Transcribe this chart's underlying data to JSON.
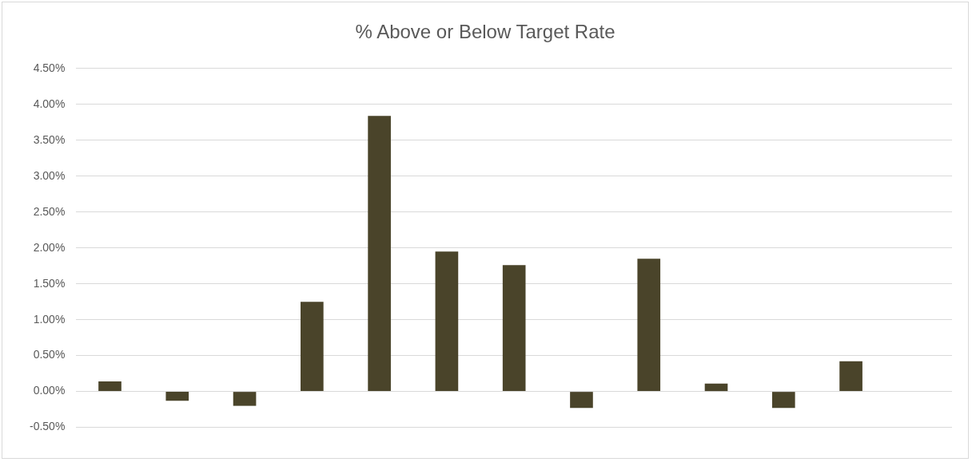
{
  "chart_data": {
    "type": "bar",
    "title": "% Above or Below Target Rate",
    "categories": [
      null,
      null,
      null,
      null,
      null,
      null,
      null,
      null,
      null,
      null,
      null,
      null,
      null
    ],
    "values": [
      0.14,
      -0.13,
      -0.2,
      1.25,
      3.84,
      1.95,
      1.76,
      -0.23,
      1.85,
      0.11,
      -0.23,
      0.42,
      null
    ],
    "color": "#4a442a",
    "ylim": [
      -0.5,
      4.5
    ],
    "yticks": [
      {
        "value": -0.5,
        "label": "-0.50%"
      },
      {
        "value": 0,
        "label": "0.00%"
      },
      {
        "value": 0.5,
        "label": "0.50%"
      },
      {
        "value": 1,
        "label": "1.00%"
      },
      {
        "value": 1.5,
        "label": "1.50%"
      },
      {
        "value": 2,
        "label": "2.00%"
      },
      {
        "value": 2.5,
        "label": "2.50%"
      },
      {
        "value": 3,
        "label": "3.00%"
      },
      {
        "value": 3.5,
        "label": "3.50%"
      },
      {
        "value": 4,
        "label": "4.00%"
      },
      {
        "value": 4.5,
        "label": "4.50%"
      }
    ],
    "grid": "y",
    "legend": false
  }
}
